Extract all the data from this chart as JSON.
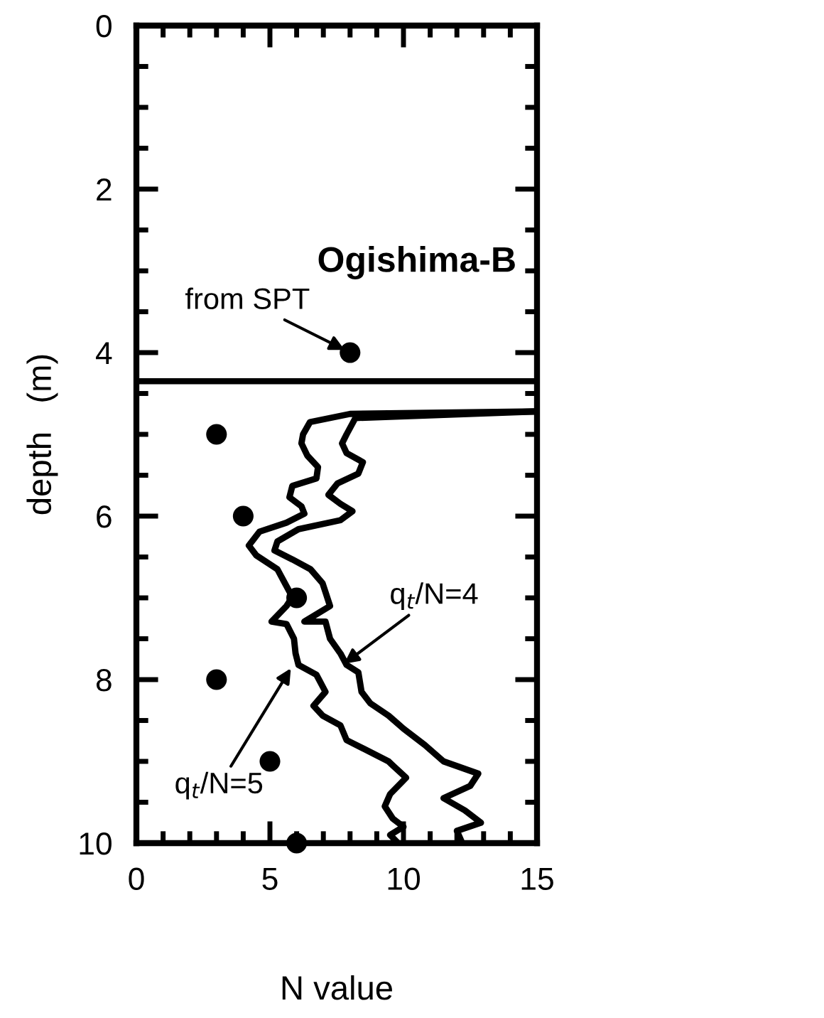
{
  "chart_data": {
    "type": "line",
    "title": "Ogishima-B",
    "xlabel": "N value",
    "ylabel": "depth   (m)",
    "xlim": [
      0,
      15
    ],
    "ylim": [
      10,
      0
    ],
    "xticks": [
      0,
      {
        "value": 1,
        "label": null
      },
      {
        "value": 2,
        "label": null
      },
      {
        "value": 3,
        "label": null
      },
      {
        "value": 4,
        "label": null
      },
      5,
      {
        "value": 6,
        "label": null
      },
      {
        "value": 7,
        "label": null
      },
      {
        "value": 8,
        "label": null
      },
      {
        "value": 9,
        "label": null
      },
      10,
      {
        "value": 11,
        "label": null
      },
      {
        "value": 12,
        "label": null
      },
      {
        "value": 13,
        "label": null
      },
      {
        "value": 14,
        "label": null
      },
      15
    ],
    "yticks": [
      0,
      {
        "value": 0.5,
        "label": null
      },
      {
        "value": 1,
        "label": null
      },
      {
        "value": 1.5,
        "label": null
      },
      2,
      {
        "value": 2.5,
        "label": null
      },
      {
        "value": 3,
        "label": null
      },
      {
        "value": 3.5,
        "label": null
      },
      4,
      {
        "value": 4.5,
        "label": null
      },
      {
        "value": 5,
        "label": null
      },
      {
        "value": 5.5,
        "label": null
      },
      6,
      {
        "value": 6.5,
        "label": null
      },
      {
        "value": 7,
        "label": null
      },
      {
        "value": 7.5,
        "label": null
      },
      8,
      {
        "value": 8.5,
        "label": null
      },
      {
        "value": 9,
        "label": null
      },
      {
        "value": 9.5,
        "label": null
      },
      10
    ],
    "grid": false,
    "ref_lines": [
      {
        "axis": "y",
        "value": 4.35,
        "color": "#000000"
      }
    ],
    "series": [
      {
        "color": "#000000",
        "marker": "none",
        "x": [
          15,
          8,
          6.5,
          6.24,
          6.18,
          6.4,
          6.8,
          6.74,
          5.84,
          5.73,
          6.18,
          6.29,
          5.62,
          4.61,
          4.21,
          4.49,
          5.28,
          5.51,
          5.84,
          5.62,
          5.06,
          5.62,
          5.9,
          5.96,
          6.07,
          6.74,
          7.08,
          6.63,
          6.97,
          7.64,
          7.87,
          8.54,
          9.44,
          9.6,
          10.1,
          9.5,
          9.3,
          9.6,
          10.0,
          9.5,
          9.8
        ],
        "values": [
          4.72,
          4.75,
          4.85,
          5.0,
          5.11,
          5.26,
          5.4,
          5.54,
          5.63,
          5.77,
          5.88,
          5.97,
          6.08,
          6.19,
          6.36,
          6.48,
          6.65,
          6.79,
          6.99,
          7.1,
          7.29,
          7.32,
          7.5,
          7.68,
          7.82,
          7.94,
          8.15,
          8.32,
          8.44,
          8.56,
          8.74,
          8.85,
          9.0,
          9.05,
          9.2,
          9.4,
          9.55,
          9.7,
          9.8,
          9.9,
          10.0
        ]
      },
      {
        "color": "#000000",
        "marker": "none",
        "x": [
          15,
          8.2,
          7.87,
          7.7,
          7.87,
          8.48,
          8.31,
          7.53,
          7.19,
          7.64,
          8.09,
          7.64,
          6.07,
          5.28,
          5.17,
          5.84,
          6.52,
          6.97,
          7.08,
          7.25,
          6.29,
          7.08,
          7.25,
          7.64,
          7.87,
          8.31,
          8.43,
          8.76,
          9.44,
          10.0,
          10.8,
          11.5,
          12.8,
          12.5,
          11.5,
          12.3,
          12.9,
          12.0,
          12.2
        ],
        "values": [
          4.72,
          4.8,
          5.0,
          5.11,
          5.23,
          5.34,
          5.48,
          5.6,
          5.74,
          5.85,
          5.94,
          6.05,
          6.16,
          6.31,
          6.42,
          6.53,
          6.65,
          6.82,
          6.93,
          7.1,
          7.29,
          7.29,
          7.5,
          7.68,
          7.82,
          7.91,
          8.15,
          8.29,
          8.44,
          8.6,
          8.8,
          9.0,
          9.15,
          9.3,
          9.45,
          9.6,
          9.75,
          9.85,
          10.0
        ]
      },
      {
        "type": "scatter",
        "color": "#000000",
        "marker": "circle",
        "x": [
          8,
          3,
          4,
          6,
          3,
          5,
          6
        ],
        "values": [
          4,
          5,
          6,
          7,
          8,
          9,
          10
        ]
      }
    ],
    "annotations": [
      {
        "text": "from SPT",
        "x": 8,
        "y": 4
      },
      {
        "text": "q$_{t}$/N=4",
        "x": 7.6,
        "y": 7.85
      },
      {
        "text": "q$_{t}$/N=5",
        "x": 5.9,
        "y": 7.8
      }
    ]
  }
}
